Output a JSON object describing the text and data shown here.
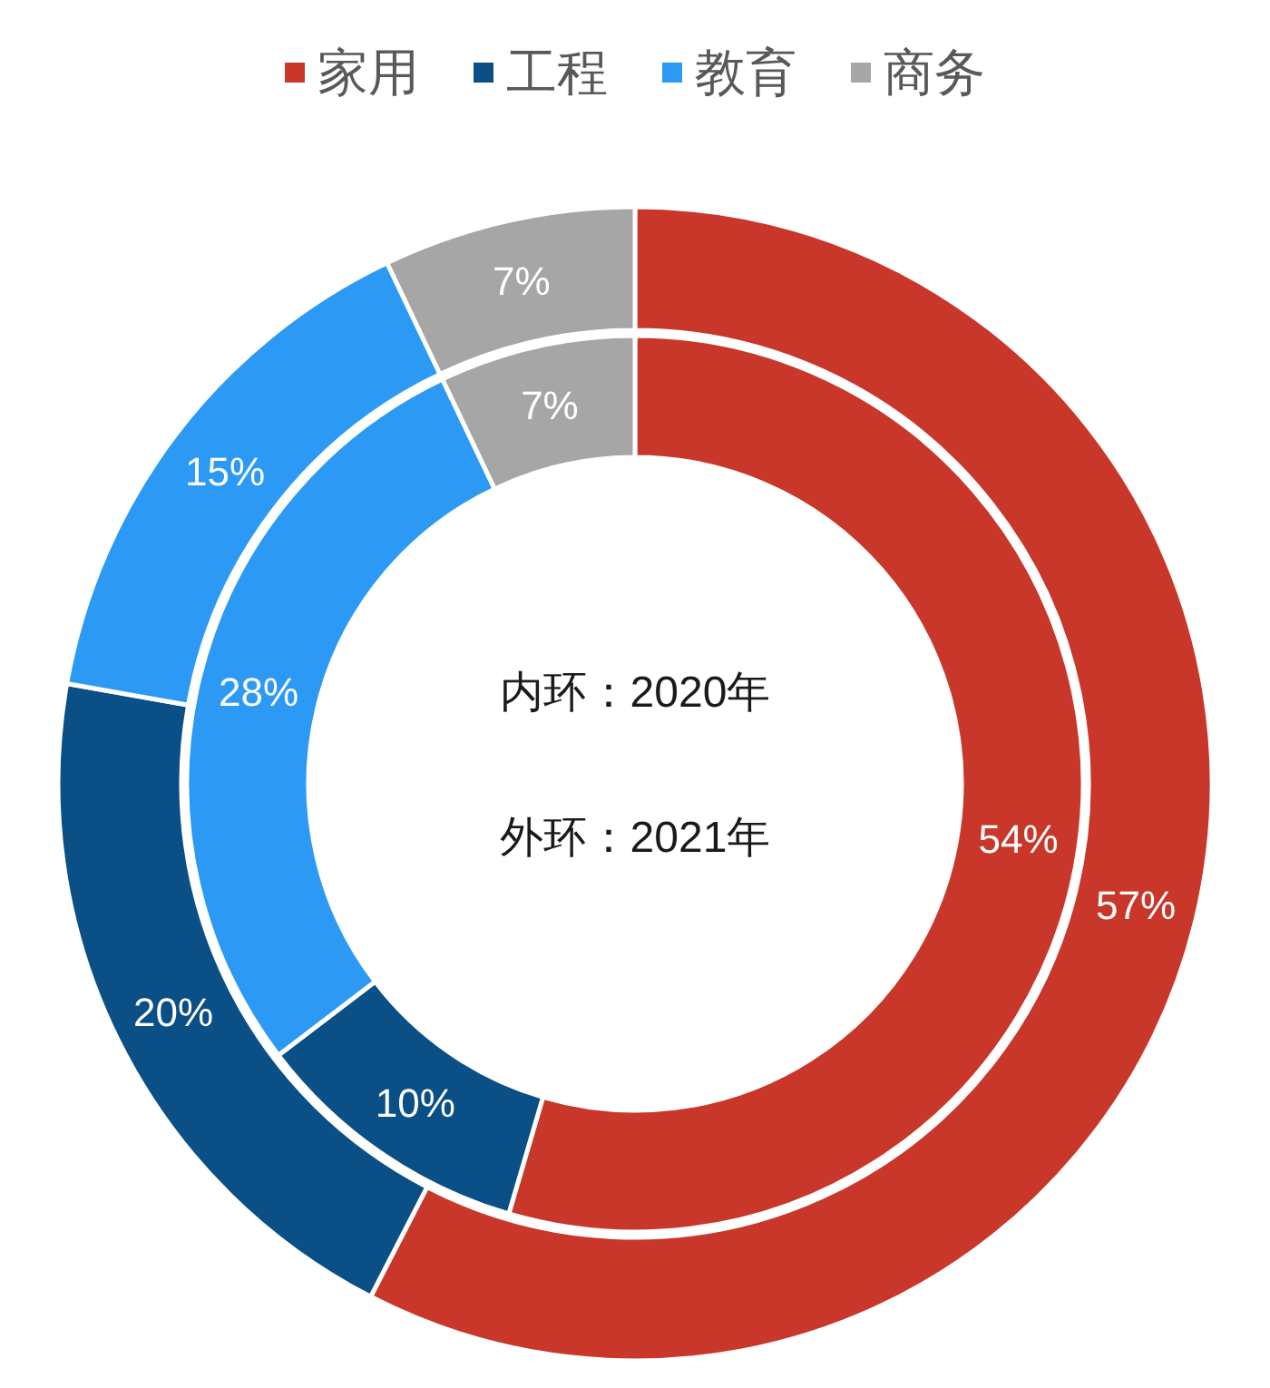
{
  "chart_data": {
    "type": "donut",
    "categories": [
      "家用",
      "工程",
      "教育",
      "商务"
    ],
    "colors": [
      "#c8372a",
      "#0a4f85",
      "#2c9af5",
      "#a6a6a6"
    ],
    "series": [
      {
        "values": [
          54,
          10,
          28,
          7
        ],
        "value_labels": [
          "54%",
          "10%",
          "28%",
          "7%"
        ]
      },
      {
        "values": [
          57,
          20,
          15,
          7
        ],
        "value_labels": [
          "57%",
          "20%",
          "15%",
          "7%"
        ]
      }
    ],
    "legend": "top",
    "annotations": [
      "内环：2020年",
      "外环：2021年"
    ]
  }
}
